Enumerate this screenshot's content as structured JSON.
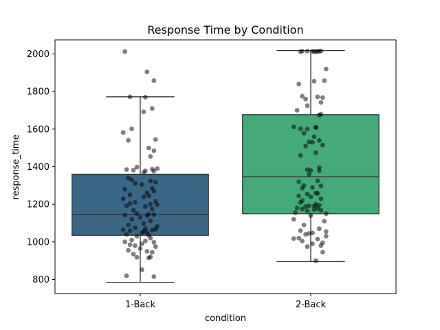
{
  "chart_data": {
    "type": "box",
    "title": "Response Time by Condition",
    "xlabel": "condition",
    "ylabel": "response_time",
    "categories": [
      "1-Back",
      "2-Back"
    ],
    "ylim": [
      725,
      2075
    ],
    "yticks": [
      800,
      1000,
      1200,
      1400,
      1600,
      1800,
      2000
    ],
    "grid": false,
    "legend": "none",
    "boxes": [
      {
        "category": "1-Back",
        "color": "#3b6787",
        "whisker_low": 785,
        "q1": 1035,
        "median": 1145,
        "q3": 1360,
        "whisker_high": 1772
      },
      {
        "category": "2-Back",
        "color": "#45a97a",
        "whisker_low": 895,
        "q1": 1150,
        "median": 1347,
        "q3": 1677,
        "whisker_high": 2018
      }
    ],
    "points": [
      {
        "category": "1-Back",
        "offset": [
          -0.09,
          0.04,
          0.08,
          -0.06,
          0.03,
          0.07,
          0.02,
          -0.05,
          -0.1,
          0.09,
          -0.07,
          0.05,
          0.08,
          0.06,
          -0.02,
          0.1,
          0.07,
          -0.08,
          -0.04,
          0.03,
          0.08,
          0.02,
          -0.07,
          -0.05,
          0.06,
          0.09,
          -0.03,
          0.01,
          0.07,
          -0.09,
          0.08,
          0.04,
          -0.06,
          0.05,
          0.02,
          -0.1,
          0.09,
          -0.03,
          -0.06,
          0.06,
          0.1,
          -0.08,
          0.03,
          0.07,
          -0.04,
          -0.02,
          0.05,
          0.08,
          -0.09,
          0.04,
          0.0,
          -0.05,
          0.06,
          0.02,
          -0.07,
          0.1,
          -0.03,
          0.03,
          0.09,
          -0.1,
          0.07,
          -0.06,
          0.02,
          0.04,
          0.01,
          -0.08,
          0.05,
          -0.02,
          0.06,
          -0.05,
          0.03,
          -0.09,
          0.08,
          0.01,
          -0.06,
          -0.03,
          0.09,
          0.0,
          -0.07,
          0.04,
          0.07,
          -0.04,
          0.06,
          -0.02,
          0.05,
          0.01,
          -0.08,
          0.08
        ],
        "values": [
          2013,
          1905,
          1858,
          1772,
          1770,
          1710,
          1692,
          1602,
          1582,
          1545,
          1540,
          1500,
          1485,
          1455,
          1398,
          1390,
          1387,
          1385,
          1382,
          1378,
          1376,
          1370,
          1340,
          1330,
          1325,
          1318,
          1312,
          1305,
          1285,
          1280,
          1270,
          1260,
          1250,
          1245,
          1240,
          1230,
          1215,
          1210,
          1205,
          1200,
          1198,
          1192,
          1188,
          1175,
          1168,
          1150,
          1148,
          1145,
          1142,
          1140,
          1130,
          1120,
          1112,
          1098,
          1090,
          1082,
          1075,
          1070,
          1068,
          1065,
          1062,
          1060,
          1058,
          1050,
          1048,
          1040,
          1035,
          1030,
          1020,
          1010,
          1005,
          1000,
          998,
          990,
          985,
          980,
          975,
          965,
          955,
          950,
          945,
          935,
          920,
          918,
          915,
          852,
          820,
          815
        ]
      },
      {
        "category": "2-Back",
        "offset": [
          -0.05,
          -0.02,
          0.03,
          0.02,
          0.04,
          0.06,
          0.01,
          0.05,
          -0.06,
          0.09,
          0.08,
          0.02,
          -0.07,
          -0.05,
          0.04,
          0.07,
          -0.03,
          0.06,
          -0.02,
          -0.08,
          0.06,
          0.05,
          -0.1,
          0.03,
          0.03,
          -0.06,
          -0.02,
          -0.04,
          0.02,
          0.05,
          -0.01,
          0.01,
          0.07,
          -0.03,
          0.03,
          -0.06,
          0.05,
          -0.02,
          0.0,
          0.05,
          -0.01,
          0.04,
          -0.07,
          -0.04,
          0.06,
          0.01,
          -0.05,
          0.03,
          0.04,
          -0.02,
          -0.07,
          0.0,
          0.06,
          -0.05,
          -0.06,
          0.03,
          0.05,
          -0.01,
          0.02,
          -0.03,
          -0.08,
          0.04,
          -0.05,
          0.02,
          0.06,
          -0.02,
          -0.09,
          0.09,
          0.0,
          -0.1,
          0.08,
          -0.04,
          0.05,
          -0.06,
          0.09,
          0.01,
          -0.01,
          -0.03,
          0.09,
          -0.07,
          -0.1,
          0.04,
          -0.05,
          0.07,
          0.01,
          0.06,
          -0.02,
          0.07,
          0.03
        ],
        "values": [
          2015,
          2015,
          2013,
          2012,
          2014,
          2016,
          2015,
          2014,
          2012,
          1920,
          1858,
          1855,
          1840,
          1775,
          1772,
          1768,
          1760,
          1742,
          1725,
          1700,
          1680,
          1675,
          1612,
          1610,
          1608,
          1602,
          1600,
          1578,
          1560,
          1540,
          1532,
          1530,
          1515,
          1510,
          1475,
          1460,
          1395,
          1385,
          1380,
          1378,
          1360,
          1325,
          1320,
          1300,
          1298,
          1290,
          1285,
          1260,
          1258,
          1255,
          1245,
          1240,
          1230,
          1220,
          1210,
          1200,
          1195,
          1192,
          1190,
          1188,
          1180,
          1178,
          1175,
          1172,
          1168,
          1165,
          1155,
          1150,
          1140,
          1120,
          1110,
          1090,
          1070,
          1060,
          1055,
          1048,
          1045,
          1040,
          1030,
          1020,
          1018,
          1015,
          1005,
          995,
          990,
          980,
          975,
          945,
          900
        ]
      }
    ]
  }
}
